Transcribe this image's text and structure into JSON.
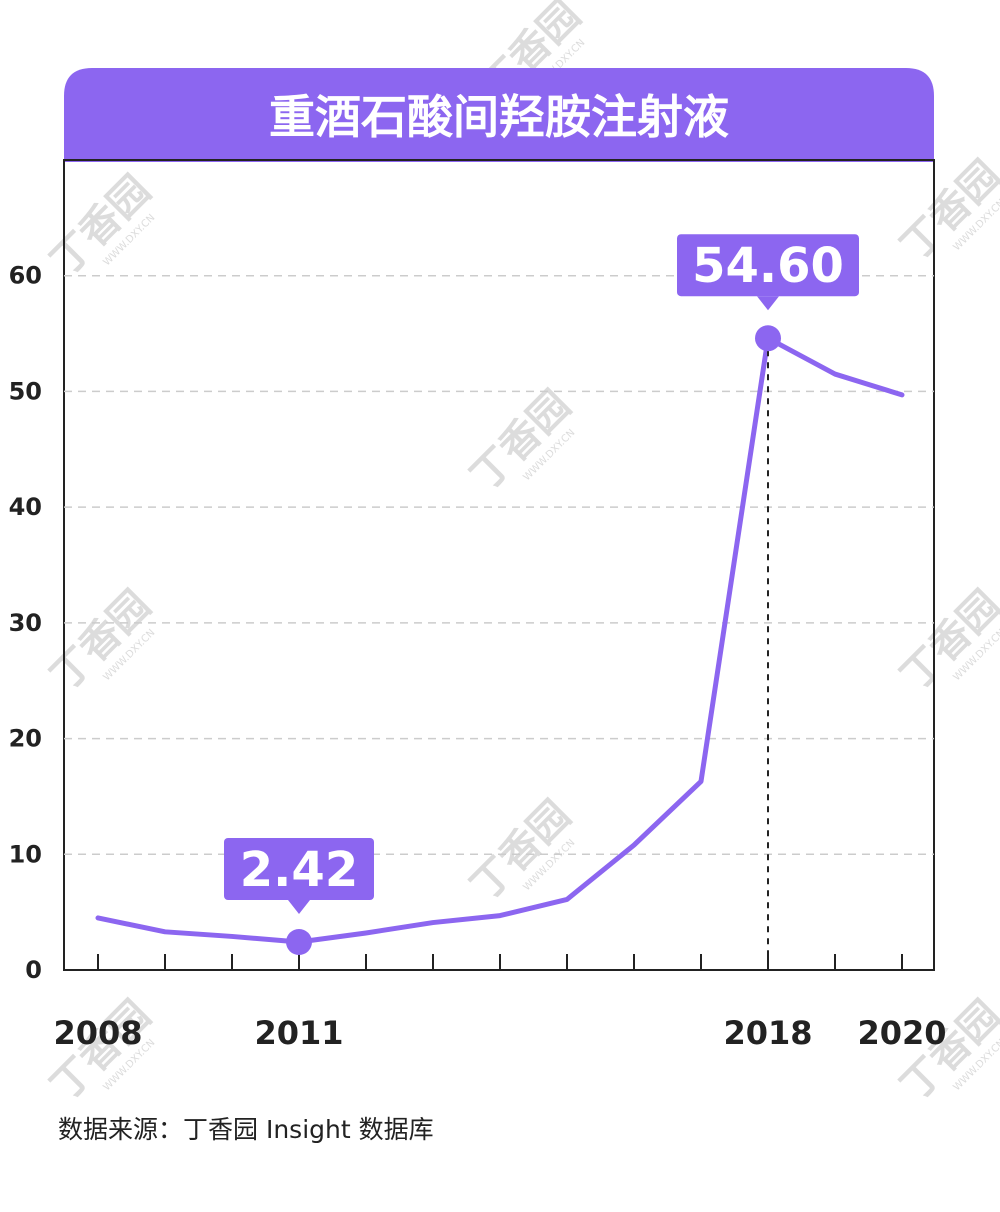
{
  "chart_data": {
    "type": "line",
    "title": "重酒石酸间羟胺注射液",
    "xlabel": "",
    "ylabel": "",
    "x": [
      2008,
      2009,
      2010,
      2011,
      2012,
      2013,
      2014,
      2015,
      2016,
      2017,
      2018,
      2019,
      2020
    ],
    "values": [
      4.5,
      3.3,
      2.9,
      2.42,
      3.2,
      4.1,
      4.7,
      6.1,
      10.8,
      16.3,
      54.6,
      51.5,
      49.7
    ],
    "xticks_labeled": [
      "2008",
      "2011",
      "2018",
      "2020"
    ],
    "yticks": [
      "0",
      "10",
      "20",
      "30",
      "40",
      "50",
      "60"
    ],
    "ylim": [
      0,
      70
    ],
    "grid": "horizontal dashed",
    "annotations": [
      {
        "x": 2011,
        "label": "2.42"
      },
      {
        "x": 2018,
        "label": "54.60"
      }
    ],
    "colors": {
      "line": "#8c66f0",
      "header": "#8c66f0",
      "grid": "#cccccc"
    }
  },
  "source_text": "数据来源：丁香园 Insight 数据库",
  "watermark": {
    "text": "丁香园",
    "sub": "WWW.DXY.CN"
  }
}
